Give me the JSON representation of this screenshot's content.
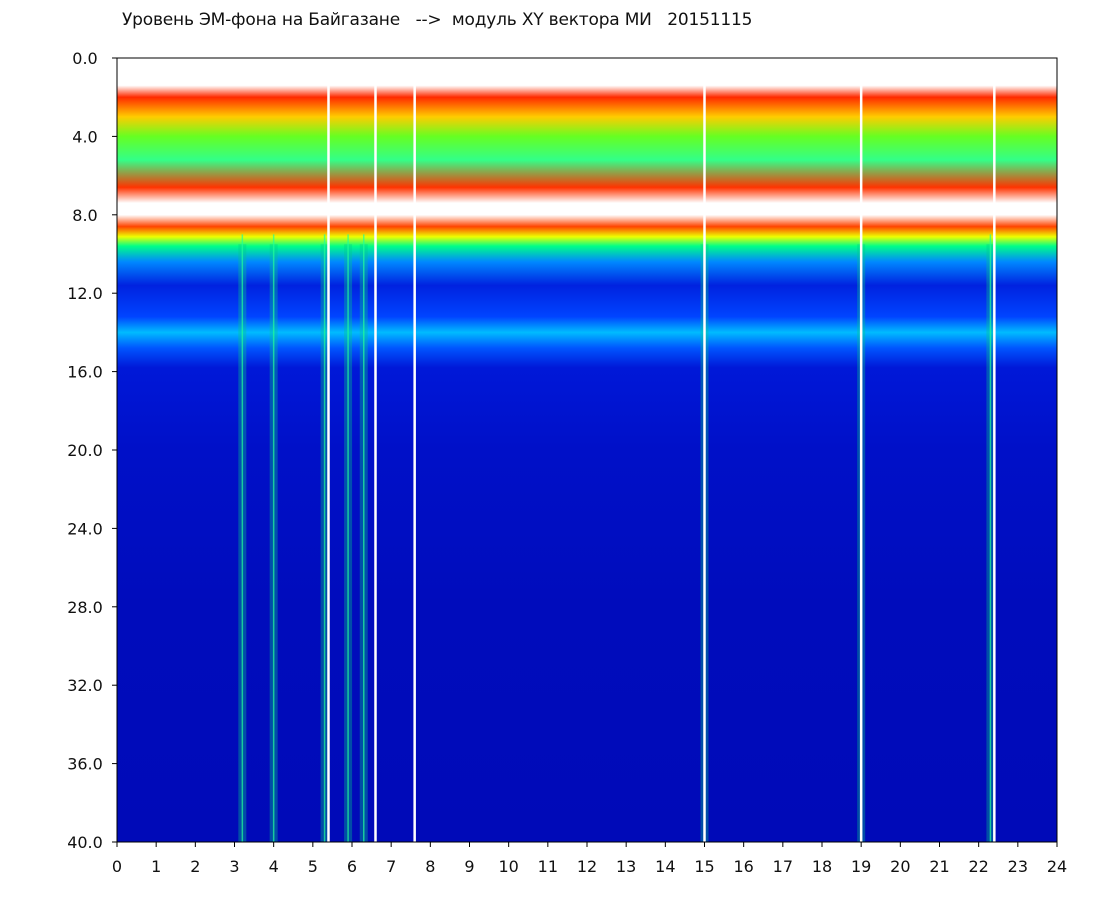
{
  "chart_data": {
    "type": "heatmap",
    "title": "Уровень ЭМ-фона на Байгазане   -->  модуль XY вектора МИ   20151115",
    "xlabel": "",
    "ylabel": "",
    "xlim": [
      0,
      24
    ],
    "ylim": [
      0.0,
      40.0
    ],
    "y_inverted": true,
    "grid": false,
    "x_ticks": [
      "0",
      "1",
      "2",
      "3",
      "4",
      "5",
      "6",
      "7",
      "8",
      "9",
      "10",
      "11",
      "12",
      "13",
      "14",
      "15",
      "16",
      "17",
      "18",
      "19",
      "20",
      "21",
      "22",
      "23",
      "24"
    ],
    "y_ticks": [
      "0.0",
      "4.0",
      "8.0",
      "12.0",
      "16.0",
      "20.0",
      "24.0",
      "28.0",
      "32.0",
      "36.0",
      "40.0"
    ],
    "colorscale": [
      "#0000a8",
      "#0033ff",
      "#00ccff",
      "#00ff66",
      "#ffff00",
      "#ff0000",
      "#ffffff"
    ],
    "bands": [
      {
        "y_range": [
          1.5,
          7.0
        ],
        "level": "high"
      },
      {
        "y_range": [
          7.0,
          8.2
        ],
        "level": "saturated"
      },
      {
        "y_range": [
          8.2,
          9.5
        ],
        "level": "medium"
      },
      {
        "y_range": [
          9.5,
          15.5
        ],
        "level": "low-medium"
      },
      {
        "y_range": [
          15.5,
          40.0
        ],
        "level": "low"
      }
    ],
    "disturbances_hours": [
      3.2,
      4.0,
      5.3,
      5.9,
      6.3,
      15.0,
      19.0,
      22.3
    ],
    "gaps_hours": [
      5.4,
      6.6,
      7.6,
      15.0,
      19.0,
      22.4
    ]
  }
}
